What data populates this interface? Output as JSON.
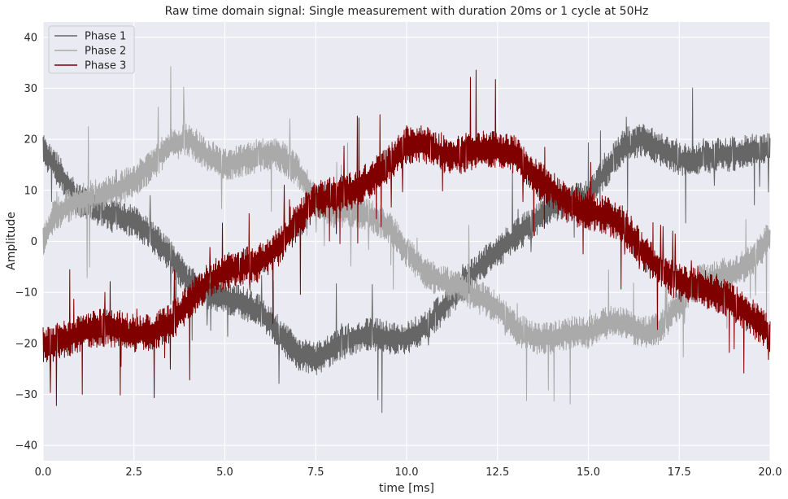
{
  "chart_data": {
    "type": "line",
    "title": "Raw time domain signal: Single measurement with duration 20ms or 1 cycle at 50Hz",
    "xlabel": "time [ms]",
    "ylabel": "Amplitude",
    "xlim": [
      0,
      20
    ],
    "ylim": [
      -43,
      43
    ],
    "xticks": [
      0,
      2.5,
      5,
      7.5,
      10,
      12.5,
      15,
      17.5,
      20
    ],
    "xtick_labels": [
      "0.0",
      "2.5",
      "5.0",
      "7.5",
      "10.0",
      "12.5",
      "15.0",
      "17.5",
      "20.0"
    ],
    "yticks": [
      40,
      30,
      20,
      10,
      0,
      -10,
      -20,
      -30,
      -40
    ],
    "ytick_labels": [
      "40",
      "30",
      "20",
      "10",
      "0",
      "−10",
      "−20",
      "−30",
      "−40"
    ],
    "grid": true,
    "background": "#eaeaf2",
    "legend_position": "top-left",
    "series": [
      {
        "name": "Phase 1",
        "color": "#666666",
        "noise": 2.2,
        "spike_rate": 0.035,
        "x": [
          0,
          0.3,
          0.7,
          1.0,
          1.5,
          2.0,
          2.5,
          3.0,
          3.5,
          4.0,
          4.5,
          5.0,
          5.5,
          6.0,
          6.5,
          7.0,
          7.5,
          8.0,
          8.5,
          9.0,
          9.5,
          10.0,
          10.5,
          11.0,
          11.5,
          12.0,
          12.5,
          13.0,
          13.5,
          14.0,
          14.5,
          15.0,
          15.5,
          16.0,
          16.5,
          17.0,
          17.5,
          18.0,
          18.5,
          19.0,
          19.5,
          20.0
        ],
        "values": [
          18,
          15,
          11,
          8,
          6,
          5,
          4,
          1,
          -3,
          -8,
          -10,
          -11,
          -12,
          -14,
          -18,
          -22,
          -23,
          -21,
          -19,
          -18,
          -19,
          -19,
          -17,
          -13,
          -9,
          -5,
          -2,
          1,
          4,
          7,
          8,
          9,
          14,
          19,
          20,
          18,
          16,
          16,
          17,
          17,
          18,
          18
        ]
      },
      {
        "name": "Phase 2",
        "color": "#aaaaaa",
        "noise": 2.2,
        "spike_rate": 0.025,
        "x": [
          0,
          0.3,
          0.7,
          1.0,
          1.5,
          2.0,
          2.5,
          3.0,
          3.5,
          4.0,
          4.5,
          5.0,
          5.5,
          6.0,
          6.5,
          7.0,
          7.5,
          8.0,
          8.5,
          9.0,
          9.5,
          10.0,
          10.5,
          11.0,
          11.5,
          12.0,
          12.5,
          13.0,
          13.5,
          14.0,
          14.5,
          15.0,
          15.5,
          16.0,
          16.5,
          17.0,
          17.5,
          18.0,
          18.5,
          19.0,
          19.5,
          20.0
        ],
        "values": [
          0,
          5,
          7,
          8,
          9,
          10,
          12,
          15,
          19,
          20,
          17,
          15,
          16,
          17,
          17,
          14,
          8,
          6,
          6,
          5,
          3,
          -2,
          -6,
          -8,
          -9,
          -11,
          -13,
          -17,
          -19,
          -19,
          -18,
          -18,
          -16,
          -16,
          -18,
          -17,
          -12,
          -8,
          -7,
          -6,
          -4,
          1
        ]
      },
      {
        "name": "Phase 3",
        "color": "#800000",
        "noise": 2.5,
        "spike_rate": 0.045,
        "x": [
          0,
          0.3,
          0.7,
          1.0,
          1.5,
          2.0,
          2.5,
          3.0,
          3.5,
          4.0,
          4.5,
          5.0,
          5.5,
          6.0,
          6.5,
          7.0,
          7.5,
          8.0,
          8.5,
          9.0,
          9.5,
          10.0,
          10.5,
          11.0,
          11.5,
          12.0,
          12.5,
          13.0,
          13.5,
          14.0,
          14.5,
          15.0,
          15.5,
          16.0,
          16.5,
          17.0,
          17.5,
          18.0,
          18.5,
          19.0,
          19.5,
          20.0
        ],
        "values": [
          -20,
          -20,
          -19,
          -18,
          -17,
          -17,
          -18,
          -18,
          -16,
          -12,
          -8,
          -6,
          -5,
          -4,
          -1,
          4,
          8,
          9,
          10,
          12,
          15,
          19,
          19,
          17,
          17,
          18,
          18,
          17,
          13,
          10,
          7,
          6,
          5,
          3,
          -2,
          -6,
          -8,
          -9,
          -10,
          -12,
          -15,
          -18
        ]
      }
    ]
  }
}
